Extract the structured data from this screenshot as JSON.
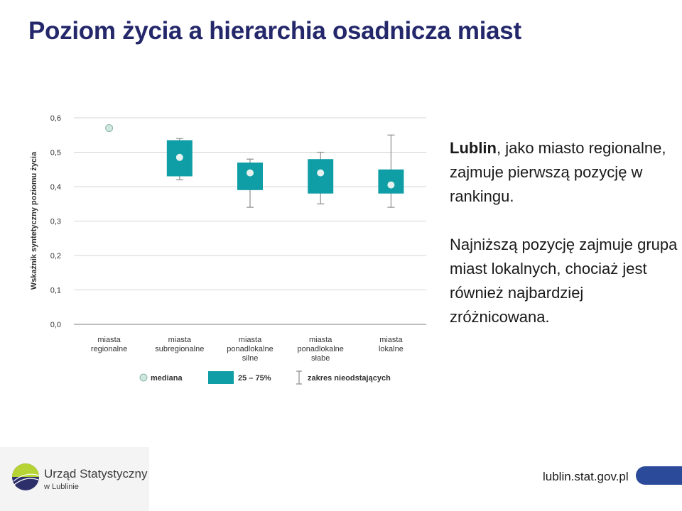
{
  "title": "Poziom życia a hierarchia osadnicza miast",
  "chart_data": {
    "type": "boxplot",
    "ylabel": "Wskaźnik syntetyczny poziomu życia",
    "ylim": [
      0,
      0.6
    ],
    "yticks": [
      "0,0",
      "0,1",
      "0,2",
      "0,3",
      "0,4",
      "0,5",
      "0,6"
    ],
    "grid": true,
    "categories": [
      [
        "miasta",
        "regionalne"
      ],
      [
        "miasta",
        "subregionalne"
      ],
      [
        "miasta",
        "ponadlokalne",
        "silne"
      ],
      [
        "miasta",
        "ponadlokalne",
        "słabe"
      ],
      [
        "miasta",
        "lokalne"
      ]
    ],
    "series": [
      {
        "median": 0.57,
        "q1": null,
        "q3": null,
        "min": null,
        "max": null
      },
      {
        "median": 0.485,
        "q1": 0.43,
        "q3": 0.535,
        "min": 0.42,
        "max": 0.54
      },
      {
        "median": 0.44,
        "q1": 0.39,
        "q3": 0.47,
        "min": 0.34,
        "max": 0.48
      },
      {
        "median": 0.44,
        "q1": 0.38,
        "q3": 0.48,
        "min": 0.35,
        "max": 0.5
      },
      {
        "median": 0.405,
        "q1": 0.38,
        "q3": 0.45,
        "min": 0.34,
        "max": 0.55
      }
    ],
    "legend": {
      "position": "bottom",
      "items": [
        {
          "kind": "median",
          "label": "mediana"
        },
        {
          "kind": "box",
          "label": "25 – 75%"
        },
        {
          "kind": "whisker",
          "label": "zakres nieodstających"
        }
      ]
    },
    "colors": {
      "box": "#0f9ea6",
      "median_in_box": "#e6f2ef",
      "median_standalone": "#cfe8df",
      "grid": "#d4d4d4",
      "whisker": "#8c8c8c"
    }
  },
  "text_panel": {
    "p1_bold": "Lublin",
    "p1_rest": ", jako miasto regionalne, zajmuje pierwszą pozycję w rankingu.",
    "p2": "Najniższą pozycję zajmuje grupa miast lokalnych, chociaż jest również najbardziej zróżnicowana."
  },
  "footer": {
    "logo_line1": "Urząd Statystyczny",
    "logo_line2": "w Lublinie",
    "website": "lublin.stat.gov.pl"
  }
}
